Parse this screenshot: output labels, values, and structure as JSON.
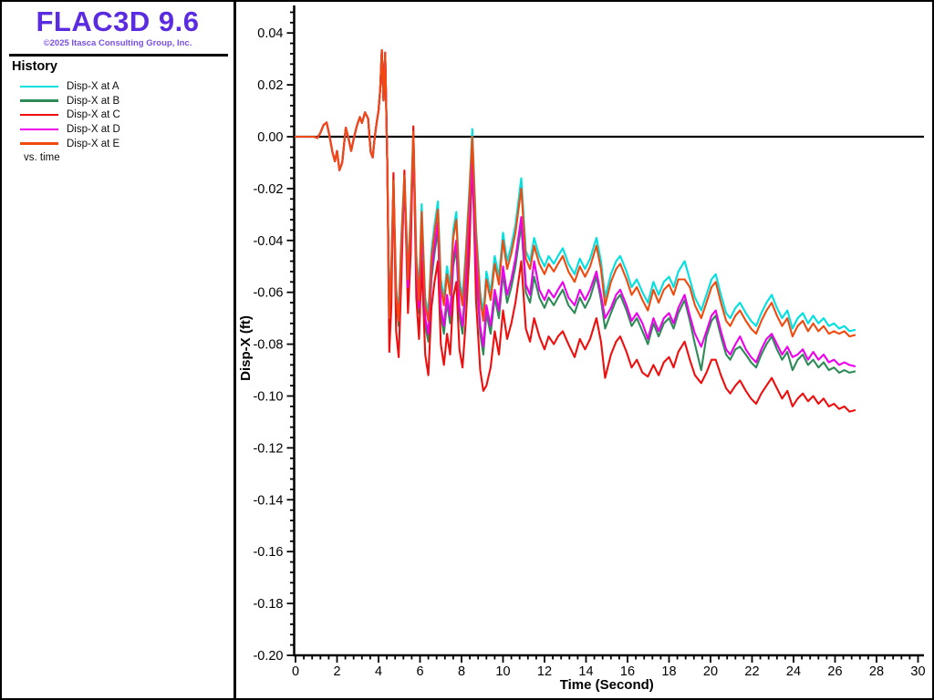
{
  "window": {
    "title": "FLAC3D 9.6",
    "copyright": "©2025 Itasca Consulting Group, Inc."
  },
  "sidebar": {
    "history_label": "History",
    "vs_label": "vs. time"
  },
  "colors": {
    "brand_title": "#5b2be0",
    "brand_copyright": "#7b4fe6",
    "axis": "#000000",
    "background": "#ffffff"
  },
  "chart_data": {
    "type": "line",
    "title": "History",
    "subtitle": "vs. time",
    "xlabel": "Time (Second)",
    "ylabel": "Disp-X (ft)",
    "xlim": [
      0,
      30
    ],
    "ylim": [
      -0.2,
      0.051
    ],
    "x_major_tick": 2,
    "x_minor_tick": 0.4,
    "y_major_tick": 0.02,
    "y_minor_tick": 0.004,
    "x_tick_labels": [
      "0",
      "2",
      "4",
      "6",
      "8",
      "10",
      "12",
      "14",
      "16",
      "18",
      "20",
      "22",
      "24",
      "26",
      "28",
      "30"
    ],
    "y_tick_labels": [
      "0.04",
      "0.02",
      "0.00",
      "-0.02",
      "-0.04",
      "-0.06",
      "-0.08",
      "-0.10",
      "-0.12",
      "-0.14",
      "-0.16",
      "-0.18",
      "-0.20"
    ],
    "grid": false,
    "zero_line": true,
    "legend_position": "left-sidebar",
    "x": [
      0.0,
      0.9,
      1.05,
      1.2,
      1.35,
      1.5,
      1.62,
      1.78,
      1.9,
      2.0,
      2.12,
      2.25,
      2.42,
      2.55,
      2.68,
      2.8,
      2.95,
      3.1,
      3.2,
      3.35,
      3.5,
      3.62,
      3.72,
      3.82,
      3.92,
      4.0,
      4.08,
      4.16,
      4.24,
      4.32,
      4.42,
      4.52,
      4.62,
      4.72,
      4.85,
      4.97,
      5.1,
      5.25,
      5.42,
      5.55,
      5.68,
      5.82,
      5.95,
      6.08,
      6.25,
      6.4,
      6.55,
      6.7,
      6.86,
      7.0,
      7.15,
      7.3,
      7.45,
      7.6,
      7.75,
      7.9,
      8.05,
      8.2,
      8.38,
      8.52,
      8.7,
      8.9,
      9.05,
      9.2,
      9.4,
      9.6,
      9.8,
      10.0,
      10.2,
      10.4,
      10.6,
      10.88,
      11.1,
      11.3,
      11.5,
      11.75,
      12.0,
      12.2,
      12.45,
      12.65,
      12.88,
      13.15,
      13.45,
      13.7,
      13.95,
      14.2,
      14.5,
      14.72,
      14.92,
      15.2,
      15.45,
      15.65,
      15.95,
      16.2,
      16.45,
      16.72,
      16.98,
      17.25,
      17.5,
      17.75,
      18.0,
      18.22,
      18.45,
      18.75,
      19.0,
      19.25,
      19.55,
      19.8,
      20.05,
      20.25,
      20.5,
      20.75,
      20.95,
      21.2,
      21.42,
      21.7,
      21.95,
      22.2,
      22.45,
      22.7,
      22.95,
      23.2,
      23.45,
      23.7,
      23.95,
      24.2,
      24.45,
      24.7,
      24.95,
      25.2,
      25.45,
      25.7,
      25.95,
      26.2,
      26.45,
      26.7,
      26.95
    ],
    "series": [
      {
        "name": "Disp-X at A",
        "color": "#00e0e0",
        "values": [
          0.0,
          0.0,
          -0.0005,
          0.0015,
          0.0045,
          0.0055,
          0.001,
          -0.006,
          -0.0095,
          -0.0055,
          -0.0129,
          -0.01,
          0.0035,
          -0.0005,
          -0.0055,
          -0.001,
          0.004,
          0.0076,
          0.0053,
          0.0094,
          0.007,
          -0.0059,
          -0.008,
          0.0,
          0.006,
          0.01,
          0.018,
          0.0334,
          0.014,
          0.0324,
          -0.01,
          -0.067,
          -0.048,
          -0.016,
          -0.058,
          -0.068,
          -0.038,
          -0.014,
          -0.052,
          -0.028,
          0.003,
          -0.045,
          -0.06,
          -0.026,
          -0.062,
          -0.068,
          -0.044,
          -0.034,
          -0.025,
          -0.055,
          -0.062,
          -0.05,
          -0.058,
          -0.036,
          -0.029,
          -0.055,
          -0.062,
          -0.045,
          -0.02,
          0.003,
          -0.035,
          -0.06,
          -0.068,
          -0.052,
          -0.06,
          -0.046,
          -0.054,
          -0.037,
          -0.048,
          -0.042,
          -0.034,
          -0.016,
          -0.044,
          -0.048,
          -0.039,
          -0.046,
          -0.05,
          -0.046,
          -0.049,
          -0.046,
          -0.043,
          -0.049,
          -0.053,
          -0.047,
          -0.051,
          -0.047,
          -0.039,
          -0.048,
          -0.062,
          -0.053,
          -0.048,
          -0.046,
          -0.052,
          -0.058,
          -0.055,
          -0.06,
          -0.064,
          -0.056,
          -0.061,
          -0.056,
          -0.054,
          -0.058,
          -0.052,
          -0.048,
          -0.055,
          -0.062,
          -0.067,
          -0.061,
          -0.055,
          -0.053,
          -0.061,
          -0.068,
          -0.07,
          -0.066,
          -0.064,
          -0.068,
          -0.071,
          -0.073,
          -0.068,
          -0.064,
          -0.061,
          -0.066,
          -0.07,
          -0.067,
          -0.074,
          -0.07,
          -0.068,
          -0.072,
          -0.069,
          -0.072,
          -0.07,
          -0.073,
          -0.072,
          -0.074,
          -0.073,
          -0.075,
          -0.0745
        ]
      },
      {
        "name": "Disp-X at B",
        "color": "#2e8b57",
        "values": [
          0.0,
          0.0,
          -0.0005,
          0.0015,
          0.0045,
          0.0055,
          0.001,
          -0.006,
          -0.0095,
          -0.0055,
          -0.0129,
          -0.01,
          0.0035,
          -0.0005,
          -0.0055,
          -0.001,
          0.004,
          0.0076,
          0.0053,
          0.0094,
          0.007,
          -0.0059,
          -0.008,
          0.0,
          0.006,
          0.01,
          0.018,
          0.0334,
          0.014,
          0.0324,
          -0.01,
          -0.072,
          -0.053,
          -0.02,
          -0.063,
          -0.073,
          -0.046,
          -0.018,
          -0.06,
          -0.036,
          -0.001,
          -0.053,
          -0.068,
          -0.037,
          -0.073,
          -0.079,
          -0.055,
          -0.045,
          -0.036,
          -0.069,
          -0.076,
          -0.064,
          -0.072,
          -0.05,
          -0.043,
          -0.069,
          -0.076,
          -0.059,
          -0.034,
          -0.014,
          -0.051,
          -0.076,
          -0.084,
          -0.068,
          -0.076,
          -0.062,
          -0.07,
          -0.053,
          -0.064,
          -0.058,
          -0.05,
          -0.034,
          -0.06,
          -0.064,
          -0.054,
          -0.062,
          -0.066,
          -0.062,
          -0.065,
          -0.062,
          -0.059,
          -0.065,
          -0.068,
          -0.062,
          -0.066,
          -0.062,
          -0.054,
          -0.063,
          -0.074,
          -0.068,
          -0.063,
          -0.061,
          -0.067,
          -0.073,
          -0.07,
          -0.075,
          -0.08,
          -0.072,
          -0.077,
          -0.072,
          -0.07,
          -0.074,
          -0.068,
          -0.063,
          -0.071,
          -0.08,
          -0.09,
          -0.077,
          -0.071,
          -0.069,
          -0.077,
          -0.084,
          -0.086,
          -0.082,
          -0.081,
          -0.084,
          -0.087,
          -0.089,
          -0.084,
          -0.08,
          -0.077,
          -0.082,
          -0.086,
          -0.083,
          -0.09,
          -0.086,
          -0.084,
          -0.088,
          -0.086,
          -0.089,
          -0.087,
          -0.09,
          -0.089,
          -0.091,
          -0.09,
          -0.091,
          -0.0905
        ]
      },
      {
        "name": "Disp-X at C",
        "color": "#ee0e0e",
        "values": [
          0.0,
          0.0,
          -0.0005,
          0.0015,
          0.0045,
          0.0055,
          0.001,
          -0.006,
          -0.0095,
          -0.0055,
          -0.0129,
          -0.01,
          0.0035,
          -0.0005,
          -0.0055,
          -0.001,
          0.004,
          0.0076,
          0.0053,
          0.0094,
          0.007,
          -0.0059,
          -0.008,
          0.0,
          0.006,
          0.01,
          0.018,
          0.0334,
          0.014,
          0.0324,
          -0.01,
          -0.083,
          -0.065,
          -0.014,
          -0.075,
          -0.085,
          -0.055,
          -0.013,
          -0.068,
          -0.045,
          0.004,
          -0.062,
          -0.078,
          -0.048,
          -0.084,
          -0.092,
          -0.066,
          -0.056,
          -0.048,
          -0.08,
          -0.088,
          -0.076,
          -0.084,
          -0.062,
          -0.056,
          -0.082,
          -0.089,
          -0.072,
          -0.045,
          -0.005,
          -0.063,
          -0.09,
          -0.098,
          -0.096,
          -0.089,
          -0.075,
          -0.084,
          -0.067,
          -0.078,
          -0.072,
          -0.064,
          -0.048,
          -0.074,
          -0.079,
          -0.07,
          -0.077,
          -0.082,
          -0.077,
          -0.08,
          -0.077,
          -0.075,
          -0.08,
          -0.085,
          -0.078,
          -0.082,
          -0.078,
          -0.07,
          -0.079,
          -0.093,
          -0.084,
          -0.079,
          -0.077,
          -0.083,
          -0.089,
          -0.086,
          -0.091,
          -0.0925,
          -0.088,
          -0.092,
          -0.087,
          -0.085,
          -0.089,
          -0.083,
          -0.079,
          -0.086,
          -0.092,
          -0.095,
          -0.091,
          -0.086,
          -0.086,
          -0.092,
          -0.097,
          -0.099,
          -0.096,
          -0.094,
          -0.098,
          -0.101,
          -0.103,
          -0.099,
          -0.096,
          -0.093,
          -0.097,
          -0.101,
          -0.098,
          -0.104,
          -0.101,
          -0.099,
          -0.102,
          -0.1,
          -0.103,
          -0.101,
          -0.104,
          -0.103,
          -0.105,
          -0.104,
          -0.106,
          -0.1055
        ]
      },
      {
        "name": "Disp-X at D",
        "color": "#ee00ee",
        "values": [
          0.0,
          0.0,
          -0.0005,
          0.0015,
          0.0045,
          0.0055,
          0.001,
          -0.006,
          -0.0095,
          -0.0055,
          -0.0129,
          -0.01,
          0.0035,
          -0.0005,
          -0.0055,
          -0.001,
          0.004,
          0.0076,
          0.0053,
          0.0094,
          0.007,
          -0.0059,
          -0.008,
          0.0,
          0.006,
          0.01,
          0.018,
          0.0334,
          0.014,
          0.0324,
          -0.01,
          -0.07,
          -0.051,
          -0.019,
          -0.061,
          -0.071,
          -0.044,
          -0.017,
          -0.058,
          -0.034,
          0.0,
          -0.051,
          -0.066,
          -0.034,
          -0.07,
          -0.076,
          -0.052,
          -0.042,
          -0.033,
          -0.066,
          -0.073,
          -0.061,
          -0.069,
          -0.047,
          -0.04,
          -0.066,
          -0.073,
          -0.056,
          -0.031,
          -0.01,
          -0.048,
          -0.073,
          -0.081,
          -0.065,
          -0.073,
          -0.059,
          -0.067,
          -0.05,
          -0.061,
          -0.055,
          -0.047,
          -0.031,
          -0.057,
          -0.061,
          -0.048,
          -0.059,
          -0.063,
          -0.059,
          -0.062,
          -0.059,
          -0.056,
          -0.062,
          -0.065,
          -0.059,
          -0.063,
          -0.059,
          -0.052,
          -0.061,
          -0.07,
          -0.066,
          -0.061,
          -0.059,
          -0.065,
          -0.071,
          -0.068,
          -0.072,
          -0.078,
          -0.07,
          -0.075,
          -0.07,
          -0.068,
          -0.072,
          -0.066,
          -0.061,
          -0.069,
          -0.076,
          -0.081,
          -0.075,
          -0.069,
          -0.067,
          -0.075,
          -0.082,
          -0.084,
          -0.08,
          -0.077,
          -0.082,
          -0.085,
          -0.087,
          -0.082,
          -0.078,
          -0.076,
          -0.08,
          -0.084,
          -0.081,
          -0.085,
          -0.084,
          -0.082,
          -0.086,
          -0.083,
          -0.086,
          -0.084,
          -0.087,
          -0.086,
          -0.088,
          -0.087,
          -0.088,
          -0.0885
        ]
      },
      {
        "name": "Disp-X at E",
        "color": "#f04a0e",
        "values": [
          0.0,
          0.0,
          -0.0005,
          0.0015,
          0.0045,
          0.0055,
          0.001,
          -0.006,
          -0.0095,
          -0.0055,
          -0.0129,
          -0.01,
          0.0035,
          -0.0005,
          -0.0055,
          -0.001,
          0.004,
          0.0076,
          0.0053,
          0.0094,
          0.007,
          -0.0059,
          -0.008,
          0.0,
          0.006,
          0.01,
          0.018,
          0.0334,
          0.014,
          0.0324,
          -0.01,
          -0.07,
          -0.051,
          -0.017,
          -0.061,
          -0.071,
          -0.041,
          -0.015,
          -0.055,
          -0.031,
          0.002,
          -0.048,
          -0.063,
          -0.029,
          -0.065,
          -0.071,
          -0.047,
          -0.037,
          -0.028,
          -0.058,
          -0.065,
          -0.053,
          -0.061,
          -0.039,
          -0.032,
          -0.058,
          -0.065,
          -0.048,
          -0.023,
          0.0,
          -0.038,
          -0.063,
          -0.071,
          -0.055,
          -0.063,
          -0.049,
          -0.057,
          -0.04,
          -0.051,
          -0.045,
          -0.037,
          -0.02,
          -0.047,
          -0.051,
          -0.042,
          -0.049,
          -0.053,
          -0.049,
          -0.052,
          -0.049,
          -0.046,
          -0.052,
          -0.056,
          -0.05,
          -0.054,
          -0.05,
          -0.042,
          -0.051,
          -0.065,
          -0.056,
          -0.051,
          -0.049,
          -0.055,
          -0.061,
          -0.058,
          -0.063,
          -0.067,
          -0.059,
          -0.064,
          -0.059,
          -0.057,
          -0.061,
          -0.055,
          -0.055,
          -0.058,
          -0.065,
          -0.07,
          -0.064,
          -0.058,
          -0.056,
          -0.064,
          -0.071,
          -0.073,
          -0.069,
          -0.067,
          -0.071,
          -0.074,
          -0.076,
          -0.071,
          -0.067,
          -0.064,
          -0.069,
          -0.073,
          -0.07,
          -0.077,
          -0.073,
          -0.071,
          -0.075,
          -0.072,
          -0.075,
          -0.073,
          -0.076,
          -0.075,
          -0.076,
          -0.075,
          -0.077,
          -0.0765
        ]
      }
    ]
  }
}
